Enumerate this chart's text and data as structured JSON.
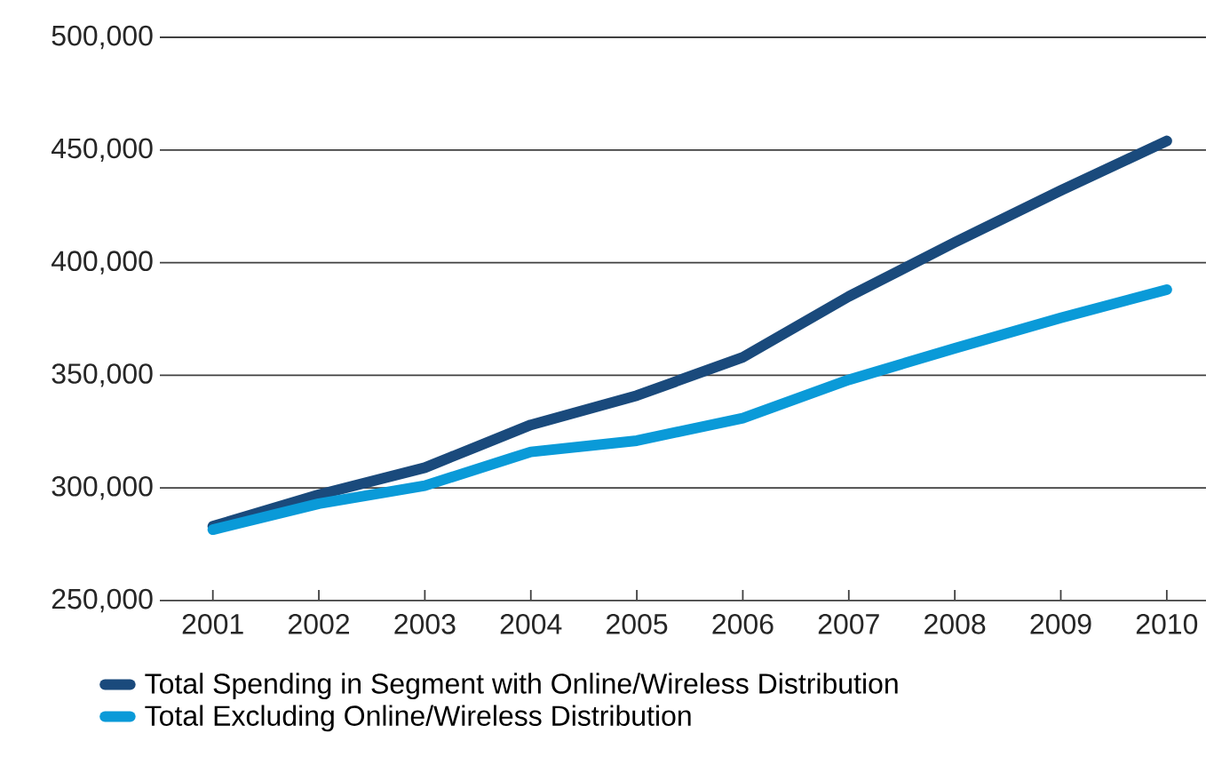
{
  "chart_data": {
    "type": "line",
    "categories": [
      "2001",
      "2002",
      "2003",
      "2004",
      "2005",
      "2006",
      "2007",
      "2008",
      "2009",
      "2010"
    ],
    "series": [
      {
        "name": "Total Spending in Segment with Online/Wireless Distribution",
        "color": "#1a4a7c",
        "values": [
          283000,
          297000,
          309000,
          328000,
          341000,
          358000,
          385000,
          409000,
          432000,
          454000
        ]
      },
      {
        "name": "Total Excluding Online/Wireless Distribution",
        "color": "#0a9ad8",
        "values": [
          281500,
          293000,
          301000,
          316000,
          321000,
          331000,
          348000,
          362000,
          375500,
          388000
        ]
      }
    ],
    "ylim": [
      250000,
      500000
    ],
    "yticks": [
      {
        "value": 250000,
        "label": "250,000"
      },
      {
        "value": 300000,
        "label": "300,000"
      },
      {
        "value": 350000,
        "label": "350,000"
      },
      {
        "value": 400000,
        "label": "400,000"
      },
      {
        "value": 450000,
        "label": "450,000"
      },
      {
        "value": 500000,
        "label": "500,000"
      }
    ],
    "grid": "y",
    "legend": "bottom"
  }
}
